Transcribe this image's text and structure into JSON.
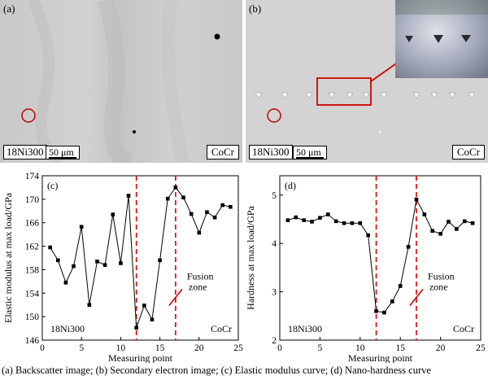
{
  "images": {
    "a": {
      "tag": "(a)",
      "left_material": "18Ni300",
      "scale": "50 μm",
      "right_material": "CoCr"
    },
    "b": {
      "tag": "(b)",
      "left_material": "18Ni300",
      "scale": "50 μm",
      "right_material": "CoCr"
    }
  },
  "caption": "(a) Backscatter image; (b) Secondary electron image; (c) Elastic modulus curve; (d) Nano-hardness curve",
  "chart_data": [
    {
      "type": "line",
      "panel": "(c)",
      "xlabel": "Measuring point",
      "ylabel": "Elastic modulus at max load/GPa",
      "xlim": [
        0,
        25
      ],
      "ylim": [
        146,
        174
      ],
      "xticks": [
        0,
        5,
        10,
        15,
        20,
        25
      ],
      "yticks": [
        146,
        150,
        154,
        158,
        162,
        166,
        170,
        174
      ],
      "fusion_lines": [
        12,
        17
      ],
      "annotation": [
        "Fusion",
        "zone"
      ],
      "left_label": "18Ni300",
      "right_label": "CoCr",
      "x": [
        1,
        2,
        3,
        4,
        5,
        6,
        7,
        8,
        9,
        10,
        11,
        12,
        13,
        14,
        15,
        16,
        17,
        18,
        19,
        20,
        21,
        22,
        23,
        24
      ],
      "values": [
        161.8,
        159.6,
        155.8,
        158.6,
        165.3,
        152.0,
        159.4,
        158.8,
        167.4,
        159.1,
        170.6,
        148.1,
        151.9,
        149.5,
        159.6,
        170.1,
        172.0,
        170.3,
        167.5,
        164.3,
        167.8,
        166.9,
        169.0,
        168.7
      ]
    },
    {
      "type": "line",
      "panel": "(d)",
      "xlabel": "Measuring point",
      "ylabel": "Hardness at max load/GPa",
      "xlim": [
        0,
        25
      ],
      "ylim": [
        2,
        5.4
      ],
      "xticks": [
        0,
        5,
        10,
        15,
        20,
        25
      ],
      "yticks": [
        2,
        3,
        4,
        5
      ],
      "fusion_lines": [
        12,
        17
      ],
      "annotation": [
        "Fusion",
        "zone"
      ],
      "left_label": "18Ni300",
      "right_label": "CoCr",
      "x": [
        1,
        2,
        3,
        4,
        5,
        6,
        7,
        8,
        9,
        10,
        11,
        12,
        13,
        14,
        15,
        16,
        17,
        18,
        19,
        20,
        21,
        22,
        23,
        24
      ],
      "values": [
        4.48,
        4.54,
        4.48,
        4.45,
        4.53,
        4.6,
        4.46,
        4.42,
        4.42,
        4.42,
        4.17,
        2.6,
        2.57,
        2.8,
        3.12,
        3.93,
        4.91,
        4.6,
        4.26,
        4.2,
        4.45,
        4.3,
        4.46,
        4.42
      ]
    }
  ]
}
